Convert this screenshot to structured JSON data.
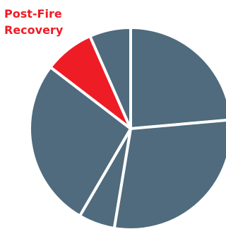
{
  "chart_data": {
    "type": "pie",
    "title": "",
    "slices": [
      {
        "label": "",
        "value": 23.6,
        "highlight": false
      },
      {
        "label": "",
        "value": 29.0,
        "highlight": false
      },
      {
        "label": "",
        "value": 5.8,
        "highlight": false
      },
      {
        "label": "",
        "value": 27.0,
        "highlight": false
      },
      {
        "label": "Post-Fire Recovery",
        "value": 8.0,
        "highlight": true
      },
      {
        "label": "",
        "value": 6.6,
        "highlight": false
      }
    ],
    "start_angle_deg": 0,
    "direction": "clockwise"
  },
  "annotation": {
    "lines": [
      "Post-Fire",
      "Recovery"
    ]
  },
  "colors": {
    "base": "#4f6b7d",
    "highlight": "#ee1c25",
    "separator": "#ffffff",
    "annotation_text": "#ee1c25"
  }
}
